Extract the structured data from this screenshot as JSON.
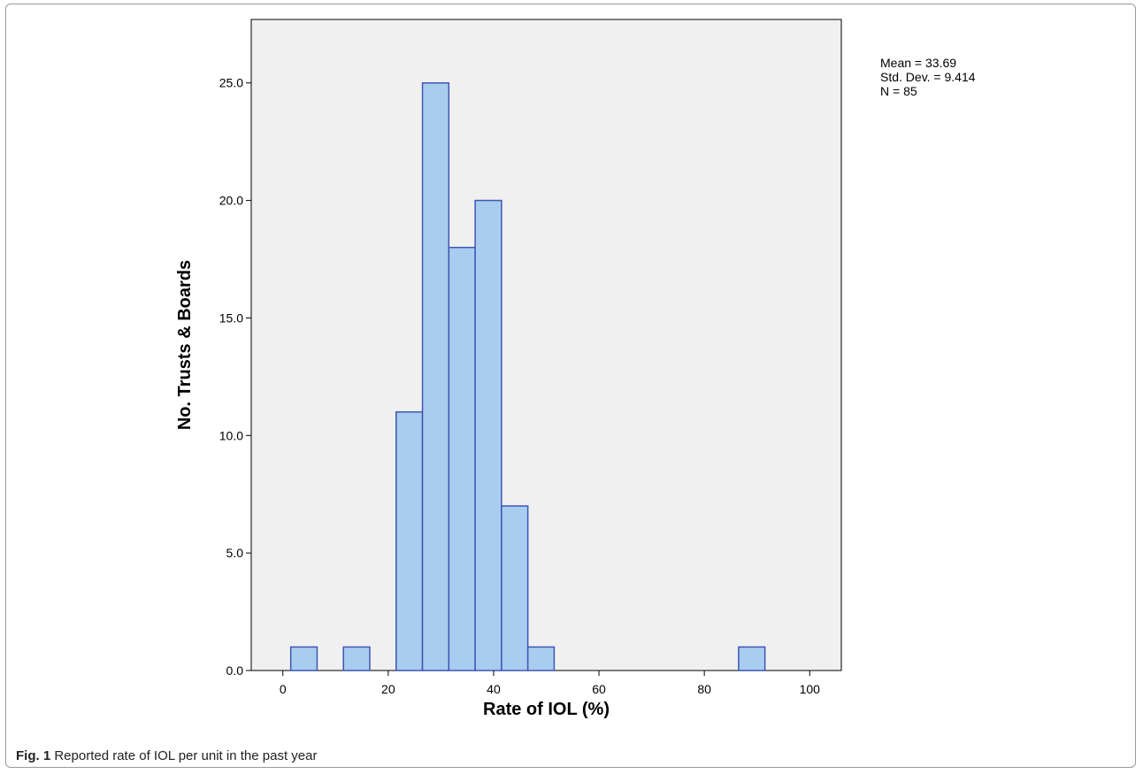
{
  "figure": {
    "label": "Fig. 1",
    "caption": "Reported rate of IOL per unit in the past year"
  },
  "stats": {
    "mean": "Mean = 33.69",
    "sd": "Std. Dev. = 9.414",
    "n": "N = 85"
  },
  "colors": {
    "bar_fill": "#a9cdef",
    "bar_stroke": "#4055b4",
    "plot_bg": "#f0f0f0"
  },
  "chart_data": {
    "type": "bar",
    "xlabel": "Rate of IOL (%)",
    "ylabel": "No. Trusts & Boards",
    "xlim": [
      -6,
      106
    ],
    "ylim": [
      0,
      27.7
    ],
    "xticks": [
      0,
      20,
      40,
      60,
      80,
      100
    ],
    "xtick_labels": [
      "0",
      "20",
      "40",
      "60",
      "80",
      "100"
    ],
    "yticks": [
      0,
      5,
      10,
      15,
      20,
      25
    ],
    "ytick_labels": [
      "0.0",
      "5.0",
      "10.0",
      "15.0",
      "20.0",
      "25.0"
    ],
    "bin_width": 5,
    "bins": [
      {
        "x0": 1.5,
        "x1": 6.5,
        "count": 1
      },
      {
        "x0": 11.5,
        "x1": 16.5,
        "count": 1
      },
      {
        "x0": 21.5,
        "x1": 26.5,
        "count": 11
      },
      {
        "x0": 26.5,
        "x1": 31.5,
        "count": 25
      },
      {
        "x0": 31.5,
        "x1": 36.5,
        "count": 18
      },
      {
        "x0": 36.5,
        "x1": 41.5,
        "count": 20
      },
      {
        "x0": 41.5,
        "x1": 46.5,
        "count": 7
      },
      {
        "x0": 46.5,
        "x1": 51.5,
        "count": 1
      },
      {
        "x0": 86.5,
        "x1": 91.5,
        "count": 1
      }
    ],
    "grid": false
  }
}
